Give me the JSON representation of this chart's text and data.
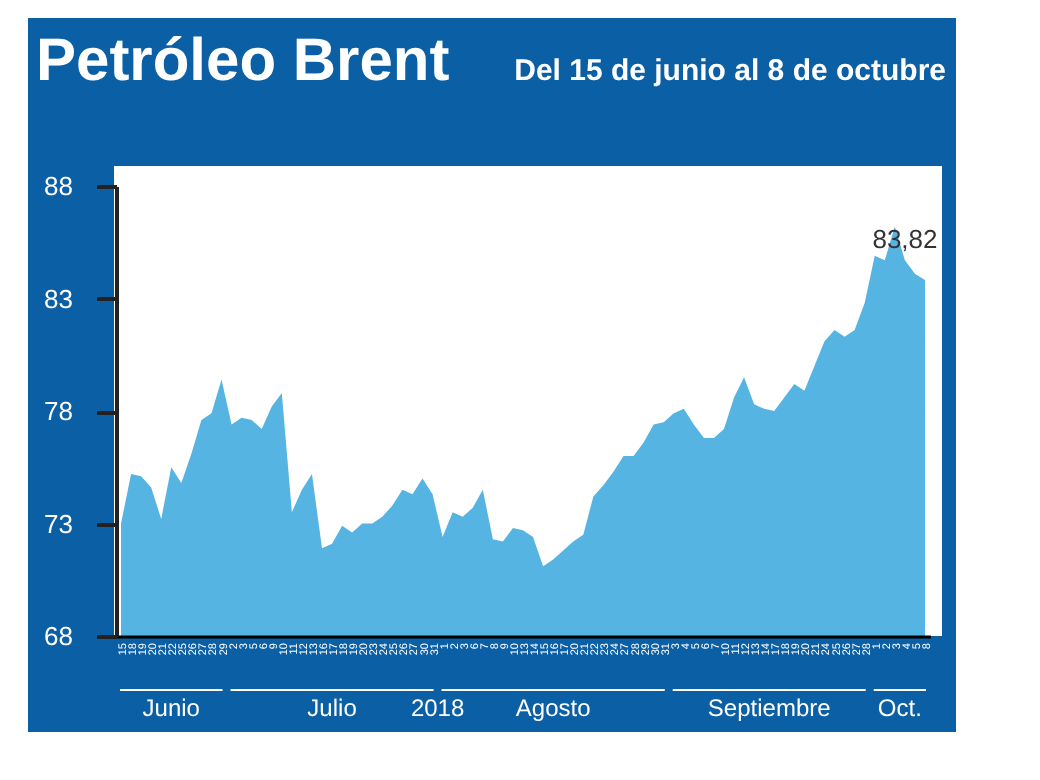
{
  "chart_data": {
    "type": "area",
    "title": "Petróleo Brent",
    "subtitle": "Del 15 de junio al 8 de octubre",
    "xlabel": "2018",
    "categories": [
      "15",
      "18",
      "19",
      "20",
      "21",
      "22",
      "25",
      "26",
      "27",
      "28",
      "29",
      "2",
      "3",
      "5",
      "6",
      "9",
      "10",
      "11",
      "12",
      "13",
      "16",
      "17",
      "18",
      "19",
      "20",
      "23",
      "24",
      "25",
      "26",
      "27",
      "30",
      "31",
      "1",
      "2",
      "3",
      "6",
      "7",
      "8",
      "9",
      "10",
      "13",
      "14",
      "15",
      "16",
      "17",
      "20",
      "21",
      "22",
      "23",
      "24",
      "27",
      "28",
      "29",
      "30",
      "31",
      "3",
      "4",
      "5",
      "6",
      "7",
      "10",
      "11",
      "12",
      "13",
      "14",
      "17",
      "18",
      "19",
      "20",
      "21",
      "24",
      "25",
      "26",
      "27",
      "28",
      "1",
      "2",
      "3",
      "4",
      "5",
      "8"
    ],
    "series": [
      {
        "color": "#56b4e3",
        "values": [
          73.0,
          75.2,
          75.1,
          74.6,
          73.2,
          75.5,
          74.8,
          76.1,
          77.6,
          77.9,
          79.4,
          77.4,
          77.7,
          77.6,
          77.2,
          78.2,
          78.8,
          73.5,
          74.5,
          75.2,
          71.9,
          72.1,
          72.9,
          72.6,
          73.0,
          73.0,
          73.3,
          73.8,
          74.5,
          74.3,
          75.0,
          74.3,
          72.4,
          73.5,
          73.3,
          73.7,
          74.5,
          72.3,
          72.2,
          72.8,
          72.7,
          72.4,
          71.1,
          71.4,
          71.8,
          72.2,
          72.5,
          74.2,
          74.7,
          75.3,
          76.0,
          76.0,
          76.6,
          77.4,
          77.5,
          77.9,
          78.1,
          77.4,
          76.8,
          76.8,
          77.2,
          78.6,
          79.5,
          78.3,
          78.1,
          78.0,
          78.6,
          79.2,
          78.9,
          80.0,
          81.1,
          81.6,
          81.3,
          81.6,
          82.8,
          84.9,
          84.7,
          86.2,
          84.7,
          84.1,
          83.82
        ],
        "value_labels": [
          null,
          null,
          null,
          null,
          null,
          null,
          null,
          null,
          null,
          null,
          null,
          null,
          null,
          null,
          null,
          null,
          null,
          null,
          null,
          null,
          null,
          null,
          null,
          null,
          null,
          null,
          null,
          null,
          null,
          null,
          null,
          null,
          null,
          null,
          null,
          null,
          null,
          null,
          null,
          null,
          null,
          null,
          null,
          null,
          null,
          null,
          null,
          null,
          null,
          null,
          null,
          null,
          null,
          null,
          null,
          null,
          null,
          null,
          null,
          null,
          null,
          null,
          null,
          null,
          null,
          null,
          null,
          null,
          null,
          null,
          null,
          null,
          null,
          null,
          null,
          null,
          null,
          null,
          null,
          null,
          "83,82"
        ]
      }
    ],
    "ylim": [
      68,
      88
    ],
    "yticks": [
      68,
      73,
      78,
      83,
      88
    ],
    "annotations": [
      "Junio",
      "Julio",
      "Agosto",
      "Septiembre",
      "Oct."
    ],
    "grid": false
  }
}
